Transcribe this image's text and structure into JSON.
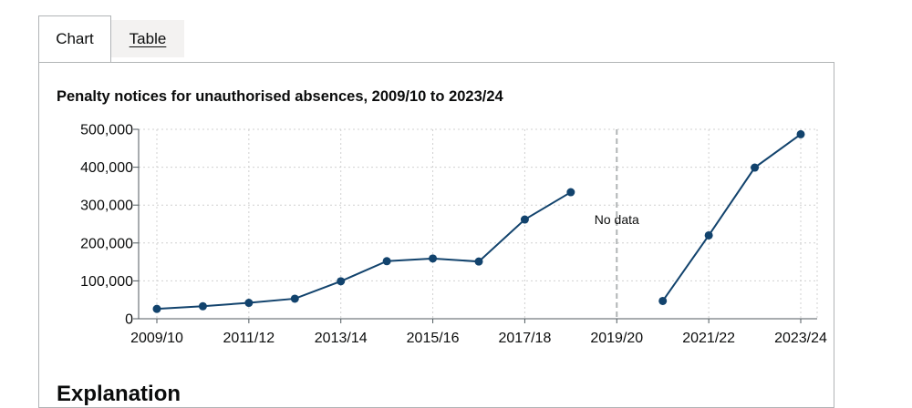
{
  "tabs": [
    {
      "label": "Chart",
      "active": true
    },
    {
      "label": "Table",
      "active": false
    }
  ],
  "next_heading": "Explanation",
  "chart_data": {
    "type": "line",
    "title": "Penalty notices for unauthorised absences, 2009/10 to 2023/24",
    "categories": [
      "2009/10",
      "2010/11",
      "2011/12",
      "2012/13",
      "2013/14",
      "2014/15",
      "2015/16",
      "2016/17",
      "2017/18",
      "2018/19",
      "2019/20",
      "2020/21",
      "2021/22",
      "2022/23",
      "2023/24"
    ],
    "x_tick_labels": [
      "2009/10",
      "2011/12",
      "2013/14",
      "2015/16",
      "2017/18",
      "2019/20",
      "2021/22",
      "2023/24"
    ],
    "series": [
      {
        "name": "Penalty notices",
        "values": [
          26000,
          33000,
          42000,
          53000,
          99000,
          152000,
          159000,
          151000,
          262000,
          334000,
          null,
          47000,
          220000,
          399000,
          487000
        ]
      }
    ],
    "y_ticks": [
      "0",
      "100,000",
      "200,000",
      "300,000",
      "400,000",
      "500,000"
    ],
    "y_tick_values": [
      0,
      100000,
      200000,
      300000,
      400000,
      500000
    ],
    "ylim": [
      0,
      500000
    ],
    "grid": true,
    "annotation": {
      "category": "2019/20",
      "text": "No data"
    },
    "colors": {
      "line": "#12436d",
      "grid": "#d0d0d0",
      "axis": "#505a5f",
      "annotation_line": "#b1b4b6"
    }
  }
}
